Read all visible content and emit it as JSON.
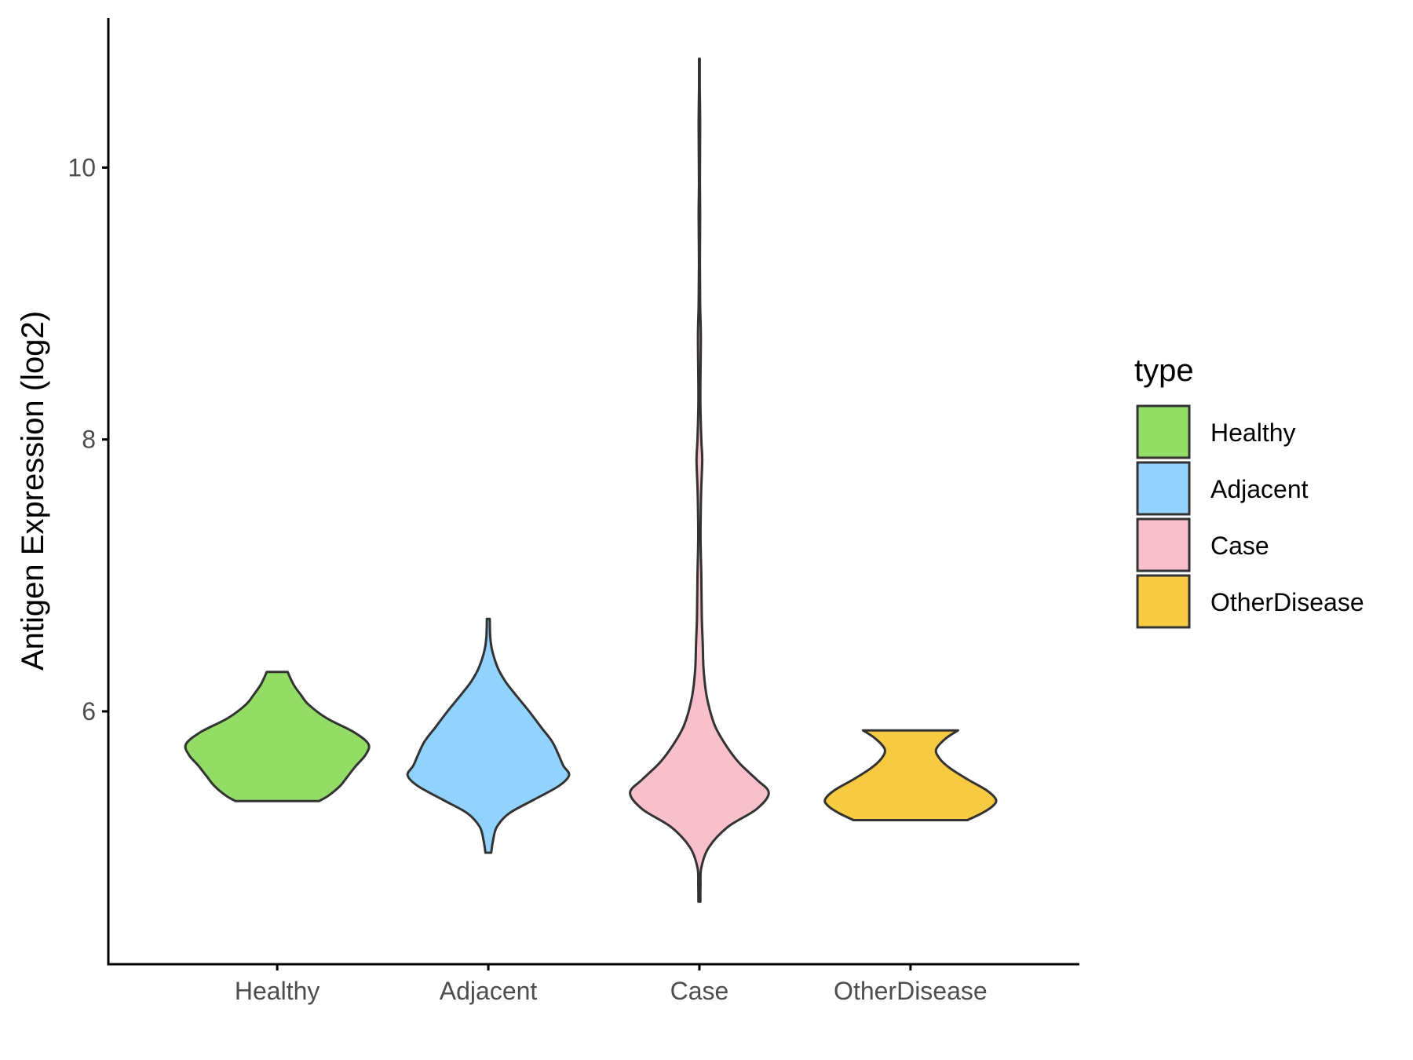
{
  "chart_data": {
    "type": "violin",
    "title": "",
    "xlabel": "",
    "ylabel": "Antigen Expression (log2)",
    "ylim": [
      4.14,
      11.1
    ],
    "yticks": [
      6,
      8,
      10
    ],
    "categories": [
      "Healthy",
      "Adjacent",
      "Case",
      "OtherDisease"
    ],
    "colors": {
      "Healthy": "#93dd67",
      "Adjacent": "#91d3fe",
      "Case": "#f8c0ca",
      "OtherDisease": "#f6ca41",
      "outline": "#333333"
    },
    "legend": {
      "title": "type",
      "position": "right",
      "entries": [
        "Healthy",
        "Adjacent",
        "Case",
        "OtherDisease"
      ]
    },
    "series": [
      {
        "name": "Healthy",
        "min": 5.34,
        "max": 6.29,
        "profile": [
          [
            5.34,
            0.44
          ],
          [
            5.38,
            0.54
          ],
          [
            5.45,
            0.66
          ],
          [
            5.52,
            0.74
          ],
          [
            5.6,
            0.83
          ],
          [
            5.68,
            0.93
          ],
          [
            5.76,
            0.96
          ],
          [
            5.85,
            0.8
          ],
          [
            5.95,
            0.52
          ],
          [
            6.05,
            0.33
          ],
          [
            6.12,
            0.25
          ],
          [
            6.2,
            0.17
          ],
          [
            6.29,
            0.11
          ]
        ]
      },
      {
        "name": "Adjacent",
        "min": 4.96,
        "max": 6.68,
        "profile": [
          [
            4.96,
            0.03
          ],
          [
            5.05,
            0.05
          ],
          [
            5.15,
            0.09
          ],
          [
            5.25,
            0.22
          ],
          [
            5.35,
            0.48
          ],
          [
            5.45,
            0.74
          ],
          [
            5.53,
            0.85
          ],
          [
            5.6,
            0.79
          ],
          [
            5.68,
            0.74
          ],
          [
            5.78,
            0.67
          ],
          [
            5.88,
            0.56
          ],
          [
            6.0,
            0.43
          ],
          [
            6.12,
            0.29
          ],
          [
            6.22,
            0.18
          ],
          [
            6.32,
            0.1
          ],
          [
            6.45,
            0.04
          ],
          [
            6.55,
            0.02
          ],
          [
            6.68,
            0.015
          ]
        ]
      },
      {
        "name": "Case",
        "min": 4.6,
        "max": 10.8,
        "profile": [
          [
            4.6,
            0.01
          ],
          [
            4.72,
            0.012
          ],
          [
            4.85,
            0.02
          ],
          [
            5.0,
            0.1
          ],
          [
            5.15,
            0.3
          ],
          [
            5.28,
            0.6
          ],
          [
            5.4,
            0.73
          ],
          [
            5.5,
            0.6
          ],
          [
            5.62,
            0.42
          ],
          [
            5.75,
            0.28
          ],
          [
            5.9,
            0.16
          ],
          [
            6.1,
            0.08
          ],
          [
            6.3,
            0.045
          ],
          [
            6.5,
            0.035
          ],
          [
            6.7,
            0.025
          ],
          [
            7.0,
            0.02
          ],
          [
            7.3,
            0.012
          ],
          [
            7.6,
            0.018
          ],
          [
            7.85,
            0.03
          ],
          [
            8.0,
            0.02
          ],
          [
            8.3,
            0.01
          ],
          [
            8.75,
            0.015
          ],
          [
            9.0,
            0.008
          ],
          [
            9.3,
            0.005
          ],
          [
            9.65,
            0.008
          ],
          [
            9.9,
            0.005
          ],
          [
            10.3,
            0.008
          ],
          [
            10.6,
            0.004
          ],
          [
            10.8,
            0.004
          ]
        ]
      },
      {
        "name": "OtherDisease",
        "min": 5.2,
        "max": 5.86,
        "profile": [
          [
            5.2,
            0.6
          ],
          [
            5.25,
            0.75
          ],
          [
            5.3,
            0.86
          ],
          [
            5.35,
            0.9
          ],
          [
            5.42,
            0.8
          ],
          [
            5.5,
            0.6
          ],
          [
            5.58,
            0.42
          ],
          [
            5.65,
            0.31
          ],
          [
            5.72,
            0.27
          ],
          [
            5.8,
            0.37
          ],
          [
            5.86,
            0.5
          ]
        ]
      }
    ]
  }
}
